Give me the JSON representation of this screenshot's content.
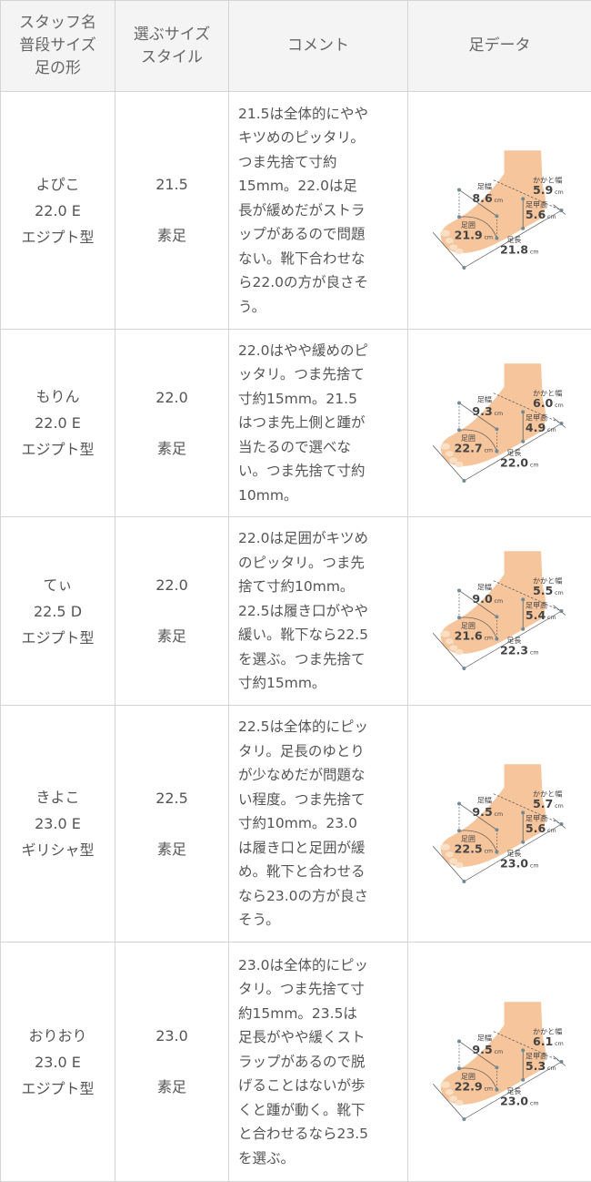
{
  "headers": [
    "スタッフ名\n普段サイズ\n足の形",
    "選ぶサイズ\nスタイル",
    "コメント",
    "足データ"
  ],
  "foot_labels": {
    "width": "足幅",
    "heel": "かかと幅",
    "instep": "足甲高",
    "girth": "足囲",
    "length": "足長",
    "unit": "cm"
  },
  "rows": [
    {
      "name": "よぴこ\n22.0 E\nエジプト型",
      "size": "21.5\n素足",
      "comment": "21.5は全体的にやや\nキツめのピッタリ。\nつま先捨て寸約\n15mm。22.0は足\n長が緩めだがストラ\nップがあるので問題\nない。靴下合わせな\nら22.0の方が良さそ\nう。",
      "foot": {
        "width": "8.6",
        "heel": "5.9",
        "instep": "5.6",
        "girth": "21.9",
        "length": "21.8"
      }
    },
    {
      "name": "もりん\n22.0 E\nエジプト型",
      "size": "22.0\n素足",
      "comment": "22.0はやや緩めのピ\nッタリ。つま先捨て\n寸約15mm。21.5\nはつま先上側と踵が\n当たるので選べな\nい。つま先捨て寸約\n10mm。",
      "foot": {
        "width": "9.3",
        "heel": "6.0",
        "instep": "4.9",
        "girth": "22.7",
        "length": "22.0"
      }
    },
    {
      "name": "てぃ\n22.5 D\nエジプト型",
      "size": "22.0\n素足",
      "comment": "22.0は足囲がキツめ\nのピッタリ。つま先\n捨て寸約10mm。\n22.5は履き口がやや\n緩い。靴下なら22.5\nを選ぶ。つま先捨て\n寸約15mm。",
      "foot": {
        "width": "9.0",
        "heel": "5.5",
        "instep": "5.4",
        "girth": "21.6",
        "length": "22.3"
      }
    },
    {
      "name": "きよこ\n23.0 E\nギリシャ型",
      "size": "22.5\n素足",
      "comment": "22.5は全体的にピッ\nタリ。足長のゆとり\nが少なめだが問題な\nい程度。つま先捨て\n寸約10mm。23.0\nは履き口と足囲が緩\nめ。靴下と合わせる\nなら23.0の方が良さ\nそう。",
      "foot": {
        "width": "9.5",
        "heel": "5.7",
        "instep": "5.6",
        "girth": "22.5",
        "length": "23.0"
      }
    },
    {
      "name": "おりおり\n23.0 E\nエジプト型",
      "size": "23.0\n素足",
      "comment": "23.0は全体的にピッ\nタリ。つま先捨て寸\n約15mm。23.5は\n足長がやや緩くスト\nラップがあるので脱\nげることはないが歩\nくと踵が動く。靴下\nと合わせるなら23.5\nを選ぶ。",
      "foot": {
        "width": "9.5",
        "heel": "6.1",
        "instep": "5.3",
        "girth": "22.9",
        "length": "23.0"
      }
    }
  ],
  "colors": {
    "skin": "#f6c59c",
    "header_bg": "#f4f4f4",
    "border": "#d4d4d4"
  }
}
